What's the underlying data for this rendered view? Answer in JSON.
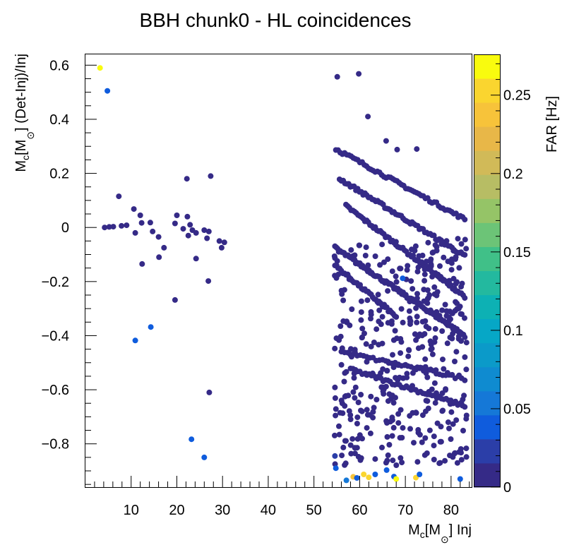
{
  "chart_data": {
    "type": "scatter",
    "title": "BBH chunk0 - HL coincidences",
    "xlabel": {
      "main": "M",
      "sub": "c",
      "bracket_open": "[M",
      "sun": "⊙",
      "rest": "] Inj"
    },
    "ylabel": {
      "main": "M",
      "sub": "c",
      "bracket_open": "[M",
      "sun": "⊙",
      "rest": "] (Det-Inj)/Inj"
    },
    "colorbar_label": "FAR [Hz]",
    "xlim": [
      0,
      84.5
    ],
    "ylim": [
      -0.96,
      0.64
    ],
    "zlim": [
      0,
      0.276
    ],
    "x_ticks": [
      10,
      20,
      30,
      40,
      50,
      60,
      70,
      80
    ],
    "x_tick_labels": [
      "10",
      "20",
      "30",
      "40",
      "50",
      "60",
      "70",
      "80"
    ],
    "y_ticks": [
      0.6,
      0.4,
      0.2,
      0,
      -0.2,
      -0.4,
      -0.6,
      -0.8
    ],
    "y_tick_labels": [
      "0.6",
      "0.4",
      "0.2",
      "0",
      "−0.2",
      "−0.4",
      "−0.6",
      "−0.8"
    ],
    "z_ticks": [
      0,
      0.05,
      0.1,
      0.15,
      0.2,
      0.25
    ],
    "z_tick_labels": [
      "0",
      "0.05",
      "0.1",
      "0.15",
      "0.2",
      "0.25"
    ],
    "colormap": [
      "#352a87",
      "#2b3ea8",
      "#0f5cdd",
      "#1578d7",
      "#0f8bd0",
      "#0b9ac9",
      "#06a7c6",
      "#0db1b4",
      "#23b99f",
      "#40c088",
      "#6cc477",
      "#95c467",
      "#b7bd64",
      "#d1ba58",
      "#e8b748",
      "#f7c33a",
      "#fad52f",
      "#f9fb0e"
    ],
    "points": [
      {
        "x": 3.2,
        "y": 0.59,
        "far": 0.27
      },
      {
        "x": 4.8,
        "y": 0.505,
        "far": 0.04
      },
      {
        "x": 7.3,
        "y": 0.115,
        "far": 0.005
      },
      {
        "x": 4.2,
        "y": 0.0,
        "far": 0.005
      },
      {
        "x": 5.2,
        "y": 0.002,
        "far": 0.005
      },
      {
        "x": 6.1,
        "y": 0.003,
        "far": 0.005
      },
      {
        "x": 7.9,
        "y": 0.006,
        "far": 0.005
      },
      {
        "x": 9.0,
        "y": 0.008,
        "far": 0.005
      },
      {
        "x": 10.6,
        "y": 0.068,
        "far": 0.005
      },
      {
        "x": 12.0,
        "y": 0.045,
        "far": 0.005
      },
      {
        "x": 12.3,
        "y": 0.017,
        "far": 0.005
      },
      {
        "x": 14.2,
        "y": 0.018,
        "far": 0.005
      },
      {
        "x": 10.9,
        "y": -0.02,
        "far": 0.005
      },
      {
        "x": 14.7,
        "y": -0.015,
        "far": 0.005
      },
      {
        "x": 16.0,
        "y": -0.035,
        "far": 0.005
      },
      {
        "x": 17.2,
        "y": -0.075,
        "far": 0.005
      },
      {
        "x": 16.1,
        "y": -0.11,
        "far": 0.005
      },
      {
        "x": 12.4,
        "y": -0.135,
        "far": 0.005
      },
      {
        "x": 19.6,
        "y": -0.268,
        "far": 0.005
      },
      {
        "x": 14.3,
        "y": -0.368,
        "far": 0.04
      },
      {
        "x": 10.9,
        "y": -0.418,
        "far": 0.04
      },
      {
        "x": 22.2,
        "y": 0.18,
        "far": 0.005
      },
      {
        "x": 27.4,
        "y": 0.19,
        "far": 0.005
      },
      {
        "x": 20.0,
        "y": 0.045,
        "far": 0.005
      },
      {
        "x": 22.3,
        "y": 0.04,
        "far": 0.005
      },
      {
        "x": 19.6,
        "y": 0.015,
        "far": 0.005
      },
      {
        "x": 21.4,
        "y": -0.005,
        "far": 0.005
      },
      {
        "x": 22.9,
        "y": 0.01,
        "far": 0.005
      },
      {
        "x": 23.4,
        "y": -0.01,
        "far": 0.005
      },
      {
        "x": 24.2,
        "y": -0.02,
        "far": 0.005
      },
      {
        "x": 22.5,
        "y": -0.03,
        "far": 0.005
      },
      {
        "x": 26.0,
        "y": -0.01,
        "far": 0.005
      },
      {
        "x": 27.0,
        "y": -0.015,
        "far": 0.005
      },
      {
        "x": 26.6,
        "y": -0.04,
        "far": 0.005
      },
      {
        "x": 29.3,
        "y": -0.05,
        "far": 0.005
      },
      {
        "x": 30.4,
        "y": -0.055,
        "far": 0.005
      },
      {
        "x": 29.8,
        "y": -0.075,
        "far": 0.005
      },
      {
        "x": 24.2,
        "y": -0.115,
        "far": 0.005
      },
      {
        "x": 26.9,
        "y": -0.198,
        "far": 0.005
      },
      {
        "x": 27.1,
        "y": -0.61,
        "far": 0.005
      },
      {
        "x": 23.2,
        "y": -0.783,
        "far": 0.04
      },
      {
        "x": 26.0,
        "y": -0.85,
        "far": 0.04
      },
      {
        "x": 55.1,
        "y": 0.557,
        "far": 0.005
      },
      {
        "x": 59.8,
        "y": 0.568,
        "far": 0.005
      },
      {
        "x": 61.8,
        "y": 0.41,
        "far": 0.005
      },
      {
        "x": 65.8,
        "y": 0.32,
        "far": 0.005
      },
      {
        "x": 68.2,
        "y": 0.288,
        "far": 0.005
      },
      {
        "x": 72.5,
        "y": 0.29,
        "far": 0.005
      },
      {
        "x": 69.4,
        "y": -0.188,
        "far": 0.04
      },
      {
        "x": 54.8,
        "y": -0.89,
        "far": 0.04
      },
      {
        "x": 57.1,
        "y": -0.935,
        "far": 0.06
      },
      {
        "x": 58.6,
        "y": -0.922,
        "far": 0.24
      },
      {
        "x": 59.4,
        "y": -0.926,
        "far": 0.045
      },
      {
        "x": 60.9,
        "y": -0.913,
        "far": 0.26
      },
      {
        "x": 62.0,
        "y": -0.924,
        "far": 0.25
      },
      {
        "x": 63.4,
        "y": -0.913,
        "far": 0.04
      },
      {
        "x": 65.9,
        "y": -0.897,
        "far": 0.045
      },
      {
        "x": 67.5,
        "y": -0.921,
        "far": 0.04
      },
      {
        "x": 68.0,
        "y": -0.93,
        "far": 0.27
      },
      {
        "x": 72.3,
        "y": -0.925,
        "far": 0.26
      },
      {
        "x": 73.1,
        "y": -0.913,
        "far": 0.04
      },
      {
        "x": 82.0,
        "y": -0.93,
        "far": 0.04
      },
      {
        "x": 54.6,
        "y": -0.845,
        "far": 0.03
      }
    ],
    "curves": [
      {
        "x0": 54.8,
        "x1": 83.0,
        "y0": 0.29,
        "y1": 0.03,
        "n": 60
      },
      {
        "x0": 55.6,
        "x1": 83.0,
        "y0": 0.18,
        "y1": -0.105,
        "n": 70
      },
      {
        "x0": 57.0,
        "x1": 83.0,
        "y0": 0.08,
        "y1": -0.255,
        "n": 70
      },
      {
        "x0": 54.6,
        "x1": 83.0,
        "y0": -0.075,
        "y1": -0.4,
        "n": 100
      },
      {
        "x0": 54.6,
        "x1": 68.0,
        "y0": -0.14,
        "y1": -0.33,
        "n": 40
      },
      {
        "x0": 58.0,
        "x1": 83.0,
        "y0": -0.525,
        "y1": -0.66,
        "n": 50
      },
      {
        "x0": 56.0,
        "x1": 83.0,
        "y0": -0.46,
        "y1": -0.56,
        "n": 40
      }
    ],
    "cloud": {
      "x0": 54.5,
      "x1": 83.5,
      "y0": -0.88,
      "y1": -0.04,
      "n": 430,
      "seed": 7
    }
  }
}
